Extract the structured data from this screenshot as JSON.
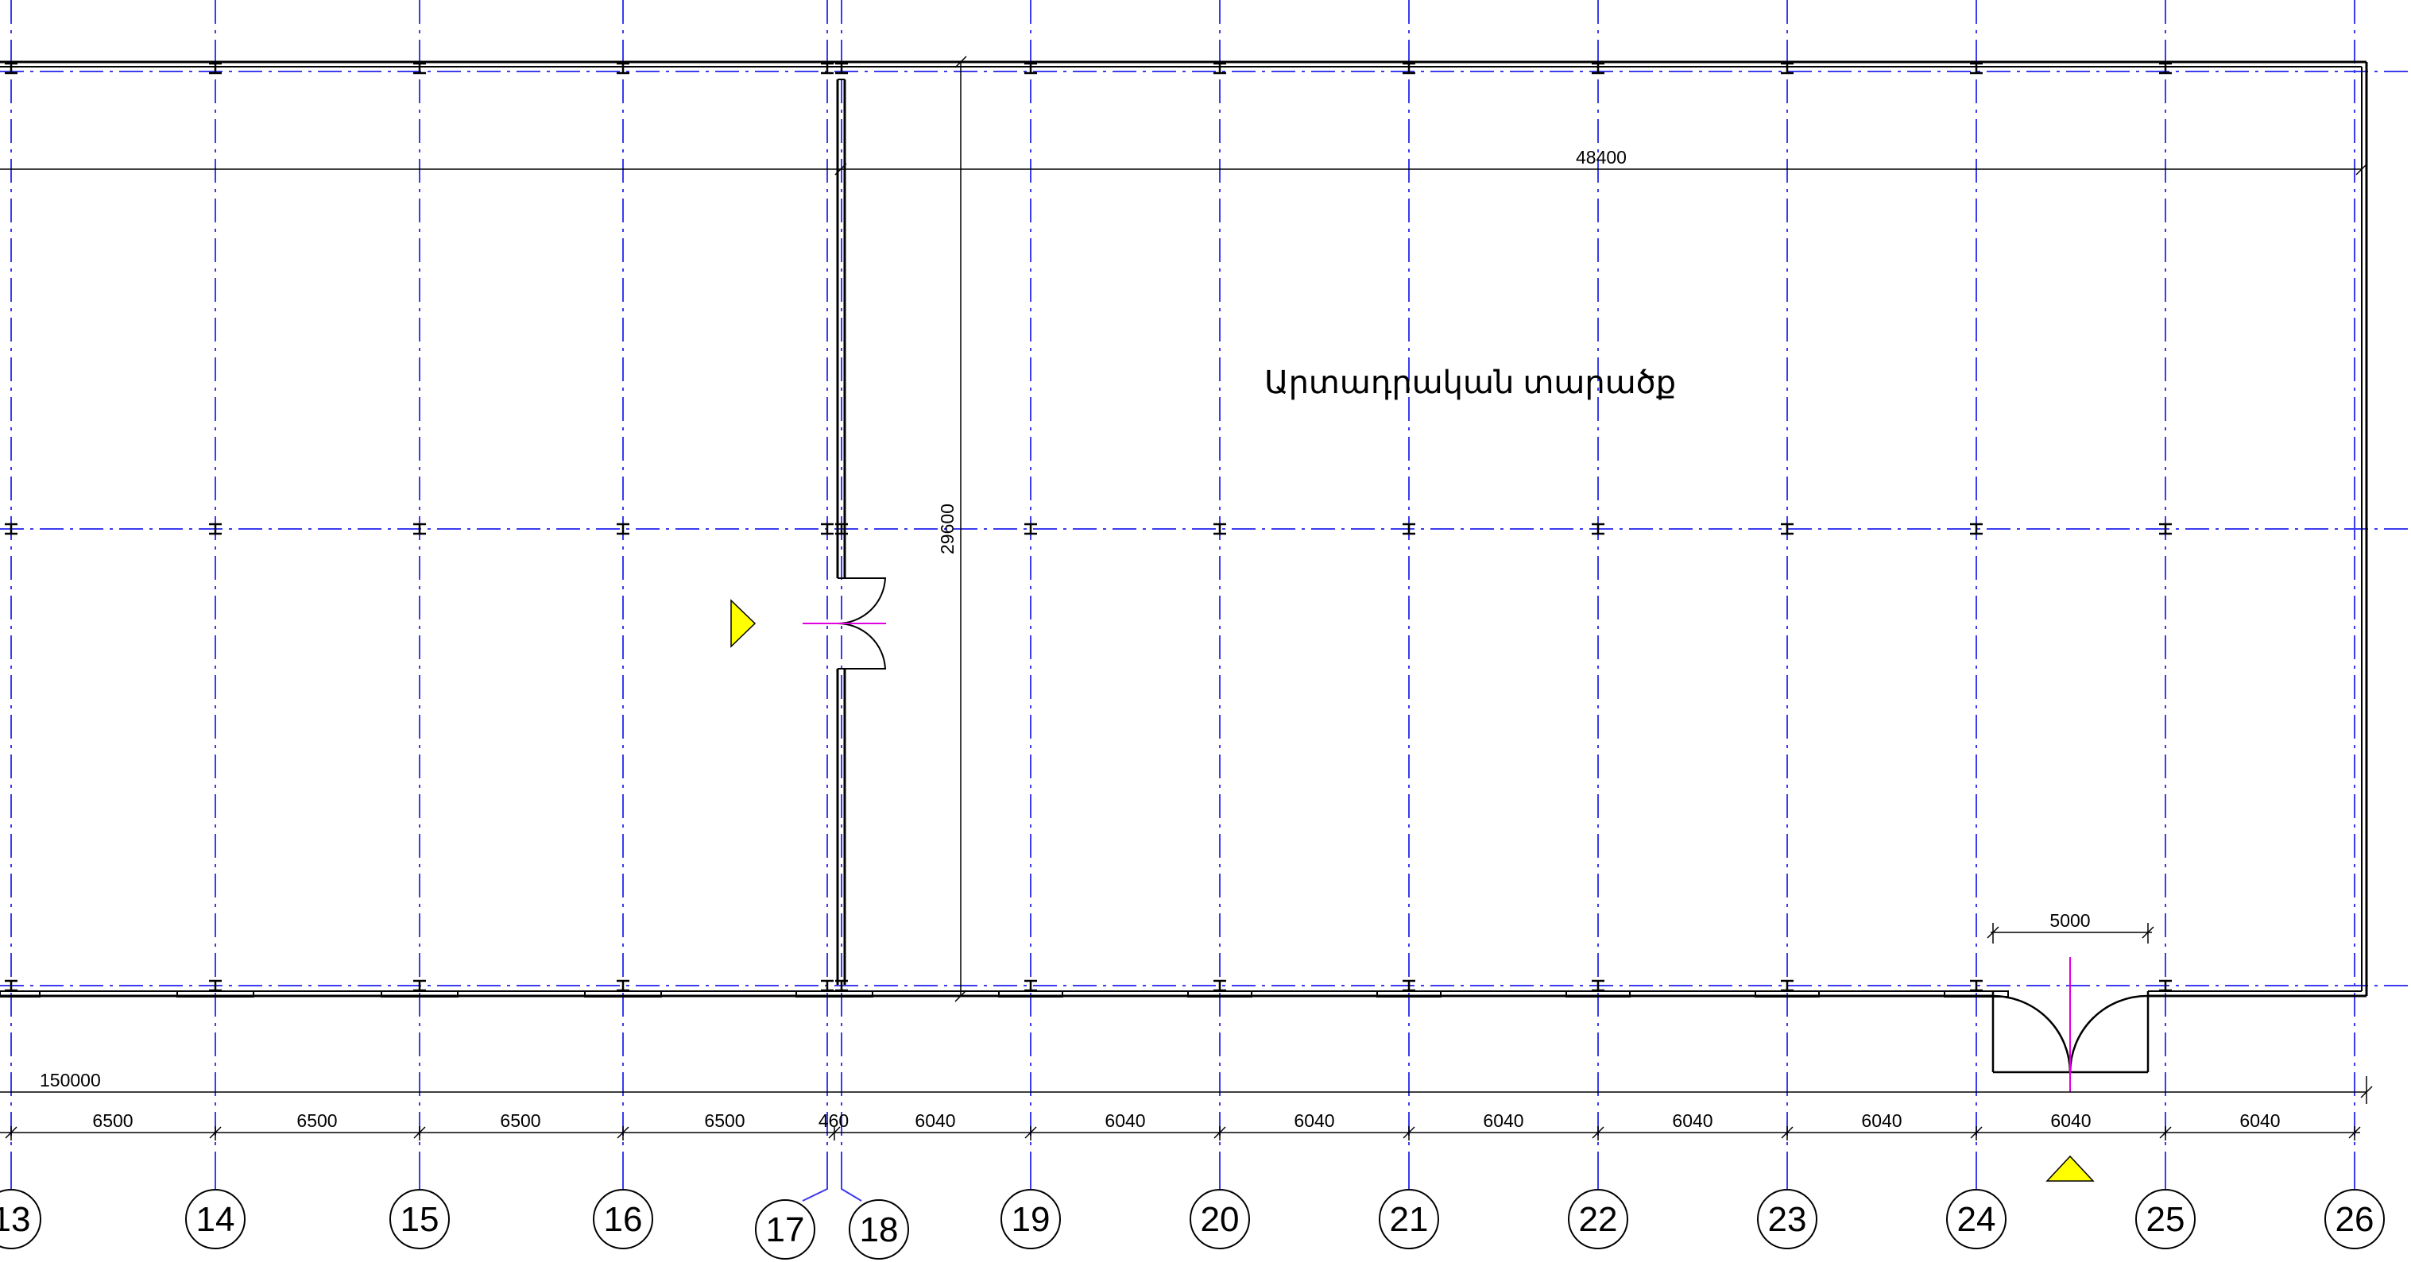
{
  "drawing": {
    "room_label": "Արտադրական տարածք",
    "overall_dimensions": {
      "total_length": "150000",
      "top_span": "48400",
      "vertical_span": "29600",
      "gate_opening": "5000"
    },
    "grid_axes": [
      {
        "id": "axis-13",
        "label": "13"
      },
      {
        "id": "axis-14",
        "label": "14"
      },
      {
        "id": "axis-15",
        "label": "15"
      },
      {
        "id": "axis-16",
        "label": "16"
      },
      {
        "id": "axis-17",
        "label": "17"
      },
      {
        "id": "axis-18",
        "label": "18"
      },
      {
        "id": "axis-19",
        "label": "19"
      },
      {
        "id": "axis-20",
        "label": "20"
      },
      {
        "id": "axis-21",
        "label": "21"
      },
      {
        "id": "axis-22",
        "label": "22"
      },
      {
        "id": "axis-23",
        "label": "23"
      },
      {
        "id": "axis-24",
        "label": "24"
      },
      {
        "id": "axis-25",
        "label": "25"
      },
      {
        "id": "axis-26",
        "label": "26"
      }
    ],
    "span_dimensions": [
      "6500",
      "6500",
      "6500",
      "6500",
      "460",
      "6040",
      "6040",
      "6040",
      "6040",
      "6040",
      "6040",
      "6040",
      "6040"
    ],
    "colors": {
      "grid_line": "#3b3bf0",
      "wall": "#000000",
      "door_axis": "#e000e0",
      "marker": "#ffff00"
    }
  }
}
